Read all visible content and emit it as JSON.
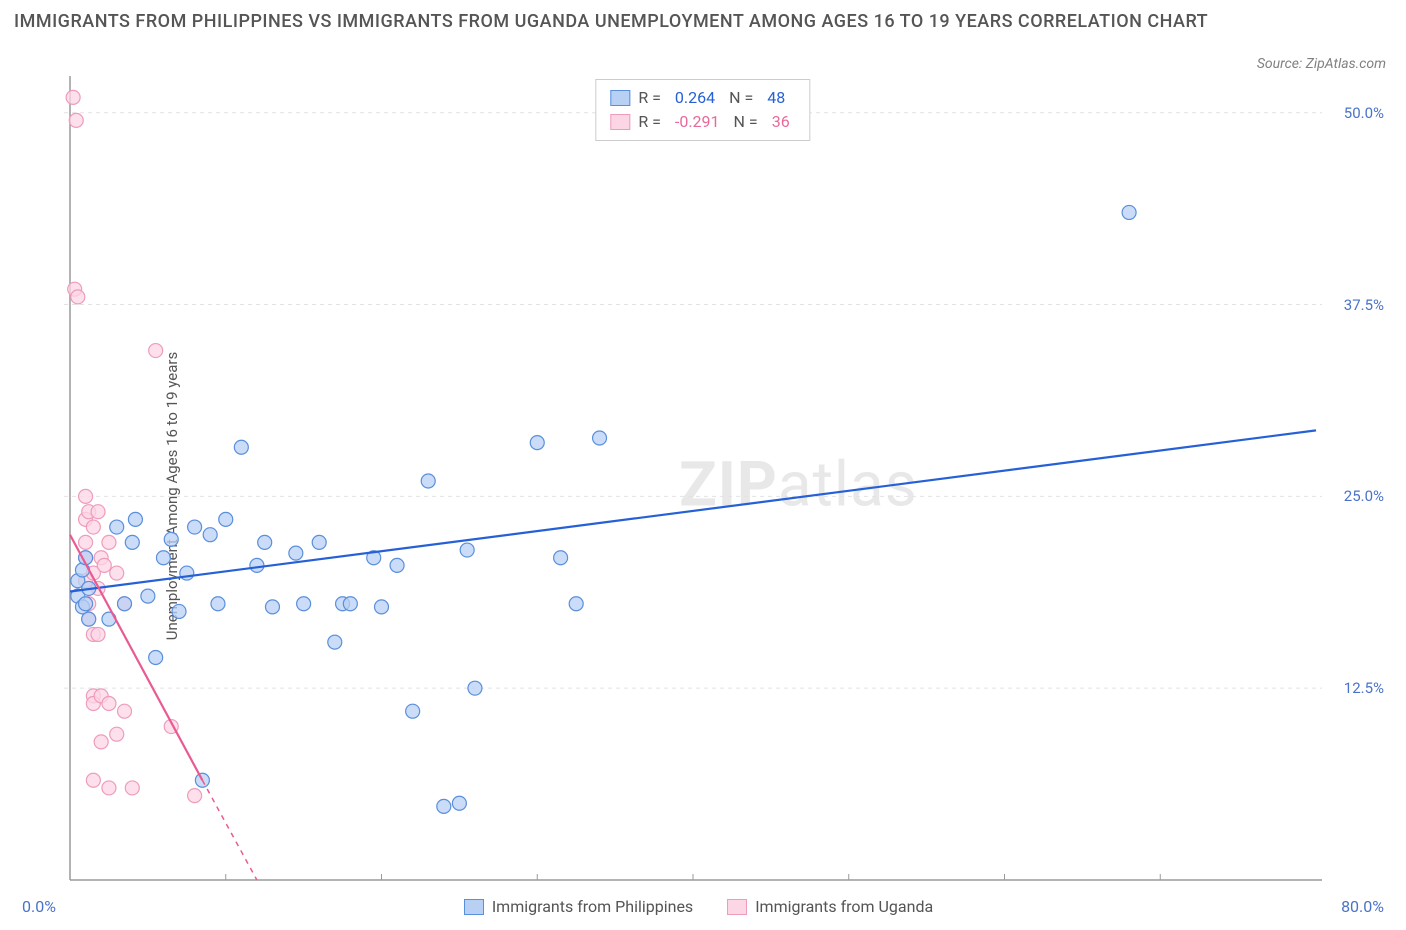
{
  "title": "IMMIGRANTS FROM PHILIPPINES VS IMMIGRANTS FROM UGANDA UNEMPLOYMENT AMONG AGES 16 TO 19 YEARS CORRELATION CHART",
  "source": "Source: ZipAtlas.com",
  "watermark_bold": "ZIP",
  "watermark_light": "atlas",
  "ylabel": "Unemployment Among Ages 16 to 19 years",
  "legend_top": {
    "blue": {
      "r_label": "R =",
      "r": "0.264",
      "n_label": "N =",
      "n": "48"
    },
    "pink": {
      "r_label": "R =",
      "r": "-0.291",
      "n_label": "N =",
      "n": "36"
    }
  },
  "legend_bottom": {
    "xmin": "0.0%",
    "series1": "Immigrants from Philippines",
    "series2": "Immigrants from Uganda",
    "xmax": "80.0%"
  },
  "chart": {
    "type": "scatter",
    "xlim": [
      0,
      80
    ],
    "ylim": [
      0,
      52
    ],
    "x_ticks": [
      0,
      10,
      20,
      30,
      40,
      50,
      60,
      70,
      80
    ],
    "y_ticks": [
      12.5,
      25.0,
      37.5,
      50.0
    ],
    "y_tick_labels": [
      "12.5%",
      "25.0%",
      "37.5%",
      "50.0%"
    ],
    "grid_color": "#e2e2e2",
    "grid_dash": "4,4",
    "axis_color": "#9a9a9a",
    "background": "#ffffff",
    "marker_radius": 7,
    "marker_stroke_width": 1.2,
    "line_width": 2.2,
    "series": {
      "blue": {
        "color_fill": "#b8d0f4",
        "color_stroke": "#5a8fdc",
        "trend_color": "#2660d6",
        "trend": {
          "x1": 0,
          "y1": 18.8,
          "x2": 80,
          "y2": 29.3
        },
        "points": [
          [
            0.5,
            18.5
          ],
          [
            0.5,
            19.5
          ],
          [
            0.8,
            17.8
          ],
          [
            0.8,
            20.2
          ],
          [
            1.0,
            18.0
          ],
          [
            1.0,
            21.0
          ],
          [
            1.2,
            19.0
          ],
          [
            1.2,
            17.0
          ],
          [
            2.5,
            17.0
          ],
          [
            3.0,
            23.0
          ],
          [
            3.5,
            18.0
          ],
          [
            4.0,
            22.0
          ],
          [
            4.2,
            23.5
          ],
          [
            5.0,
            18.5
          ],
          [
            5.5,
            14.5
          ],
          [
            6.0,
            21.0
          ],
          [
            6.5,
            22.2
          ],
          [
            7.0,
            17.5
          ],
          [
            7.5,
            20.0
          ],
          [
            8.0,
            23.0
          ],
          [
            8.5,
            6.5
          ],
          [
            9.0,
            22.5
          ],
          [
            9.5,
            18.0
          ],
          [
            10.0,
            23.5
          ],
          [
            11.0,
            28.2
          ],
          [
            12.0,
            20.5
          ],
          [
            12.5,
            22.0
          ],
          [
            13.0,
            17.8
          ],
          [
            14.5,
            21.3
          ],
          [
            15.0,
            18.0
          ],
          [
            16.0,
            22.0
          ],
          [
            17.0,
            15.5
          ],
          [
            17.5,
            18.0
          ],
          [
            18.0,
            18.0
          ],
          [
            19.5,
            21.0
          ],
          [
            20.0,
            17.8
          ],
          [
            21.0,
            20.5
          ],
          [
            22.0,
            11.0
          ],
          [
            23.0,
            26.0
          ],
          [
            24.0,
            4.8
          ],
          [
            25.0,
            5.0
          ],
          [
            25.5,
            21.5
          ],
          [
            26.0,
            12.5
          ],
          [
            30.0,
            28.5
          ],
          [
            31.5,
            21.0
          ],
          [
            32.5,
            18.0
          ],
          [
            34.0,
            28.8
          ],
          [
            68.0,
            43.5
          ]
        ]
      },
      "pink": {
        "color_fill": "#fcd6e4",
        "color_stroke": "#ee9cbb",
        "trend_color": "#ea5a92",
        "trend": {
          "x1": 0,
          "y1": 22.5,
          "x2": 12,
          "y2": 0
        },
        "trend_dash_after": {
          "x1": 8.5,
          "y1": 6.5,
          "x2": 12,
          "y2": 0
        },
        "points": [
          [
            0.2,
            51.0
          ],
          [
            0.4,
            49.5
          ],
          [
            0.3,
            38.5
          ],
          [
            0.5,
            38.0
          ],
          [
            1.0,
            25.0
          ],
          [
            1.0,
            23.5
          ],
          [
            1.0,
            22.0
          ],
          [
            1.0,
            21.0
          ],
          [
            1.0,
            19.5
          ],
          [
            1.2,
            24.0
          ],
          [
            1.2,
            18.0
          ],
          [
            1.2,
            17.0
          ],
          [
            1.5,
            23.0
          ],
          [
            1.5,
            20.0
          ],
          [
            1.5,
            16.0
          ],
          [
            1.5,
            12.0
          ],
          [
            1.5,
            11.5
          ],
          [
            1.5,
            6.5
          ],
          [
            1.8,
            24.0
          ],
          [
            1.8,
            19.0
          ],
          [
            1.8,
            16.0
          ],
          [
            2.0,
            21.0
          ],
          [
            2.0,
            12.0
          ],
          [
            2.0,
            9.0
          ],
          [
            2.5,
            22.0
          ],
          [
            2.5,
            11.5
          ],
          [
            2.5,
            6.0
          ],
          [
            3.0,
            20.0
          ],
          [
            3.0,
            9.5
          ],
          [
            3.5,
            18.0
          ],
          [
            3.5,
            11.0
          ],
          [
            4.0,
            6.0
          ],
          [
            5.5,
            34.5
          ],
          [
            6.5,
            10.0
          ],
          [
            8.0,
            5.5
          ],
          [
            2.2,
            20.5
          ]
        ]
      }
    }
  }
}
